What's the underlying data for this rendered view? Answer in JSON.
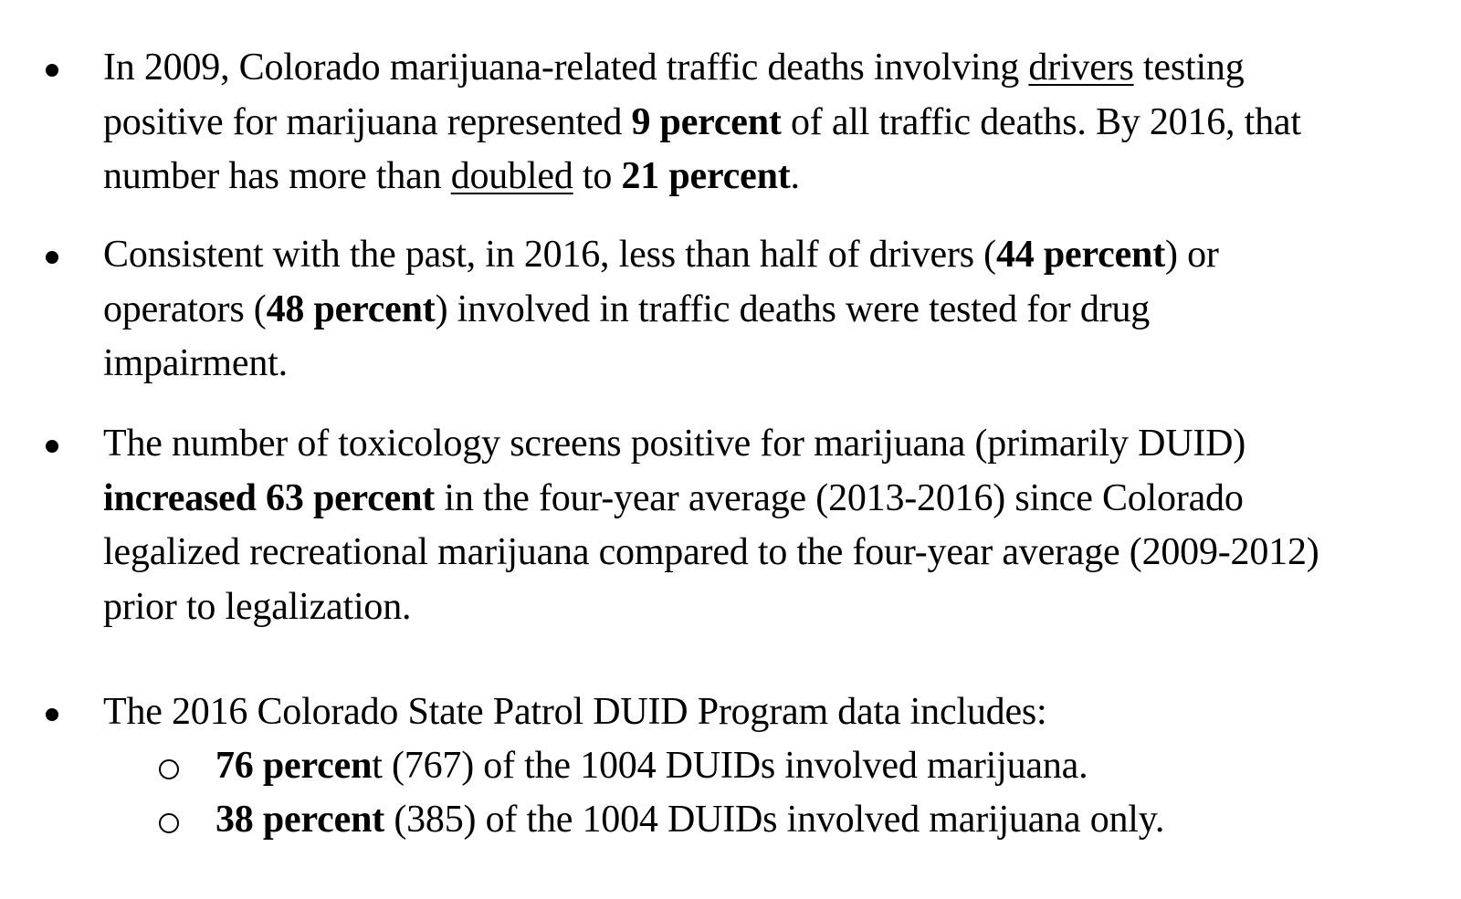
{
  "bullets": [
    {
      "lines": [
        [
          {
            "t": "In 2009, Colorado marijuana-related traffic deaths involving ",
            "s": ""
          },
          {
            "t": "drivers",
            "s": "u"
          },
          {
            "t": " testing",
            "s": ""
          }
        ],
        [
          {
            "t": "positive for marijuana represented ",
            "s": ""
          },
          {
            "t": "9 percent",
            "s": "b"
          },
          {
            "t": " of all traffic deaths.  By 2016, that",
            "s": ""
          }
        ],
        [
          {
            "t": "number has more than ",
            "s": ""
          },
          {
            "t": "doubled",
            "s": "u"
          },
          {
            "t": " to ",
            "s": ""
          },
          {
            "t": "21 percent",
            "s": "b"
          },
          {
            "t": ".",
            "s": ""
          }
        ]
      ]
    },
    {
      "lines": [
        [
          {
            "t": "Consistent with the past, in 2016, less than half of drivers (",
            "s": ""
          },
          {
            "t": "44 percent",
            "s": "b"
          },
          {
            "t": ") or",
            "s": ""
          }
        ],
        [
          {
            "t": "operators (",
            "s": ""
          },
          {
            "t": "48 percent",
            "s": "b"
          },
          {
            "t": ") involved in traffic deaths were tested for drug",
            "s": ""
          }
        ],
        [
          {
            "t": "impairment.",
            "s": ""
          }
        ]
      ]
    },
    {
      "lines": [
        [
          {
            "t": "The number of toxicology screens positive for marijuana (primarily DUID)",
            "s": ""
          }
        ],
        [
          {
            "t": "increased 63 percent",
            "s": "b"
          },
          {
            "t": " in the four-year average (2013-2016) since Colorado",
            "s": ""
          }
        ],
        [
          {
            "t": "legalized recreational marijuana compared to the four-year average (2009-2012)",
            "s": ""
          }
        ],
        [
          {
            "t": "prior to legalization.",
            "s": ""
          }
        ]
      ]
    },
    {
      "lines": [
        [
          {
            "t": "The 2016 Colorado State Patrol DUID Program data includes:",
            "s": ""
          }
        ]
      ],
      "sub_items": [
        [
          {
            "t": "76 percen",
            "s": "b"
          },
          {
            "t": "t (767) of the 1004 DUIDs involved marijuana.",
            "s": ""
          }
        ],
        [
          {
            "t": "38 percent",
            "s": "b"
          },
          {
            "t": " (385) of the 1004 DUIDs involved marijuana only.",
            "s": ""
          }
        ]
      ]
    }
  ]
}
